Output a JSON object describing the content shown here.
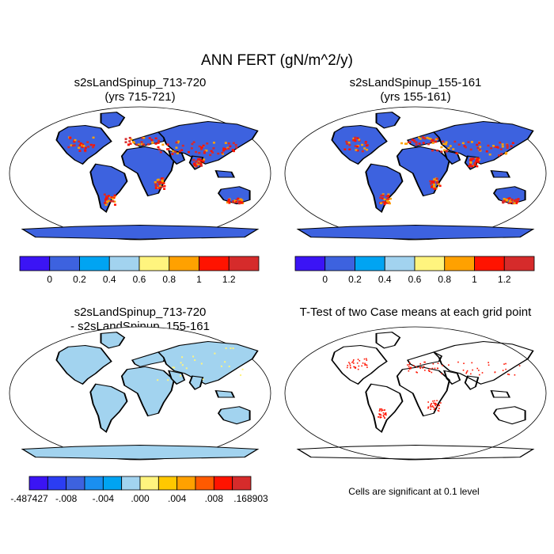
{
  "figure": {
    "title": "ANN FERT (gN/m^2/y)",
    "footnote": "Cells are significant at 0.1 level"
  },
  "chart_data": [
    {
      "type": "heatmap",
      "title": "s2sLandSpinup_713-720",
      "subtitle": "(yrs 715-721)",
      "projection": "Robinson",
      "colorbar": {
        "colors": [
          "#3b14f5",
          "#3d62df",
          "#00a4f2",
          "#a2d3ef",
          "#fff47e",
          "#ffa100",
          "#ff1300",
          "#d62b2b"
        ],
        "tick_labels": [
          "0",
          "0.2",
          "0.4",
          "0.6",
          "0.8",
          "1",
          "1.2"
        ]
      }
    },
    {
      "type": "heatmap",
      "title": "s2sLandSpinup_155-161",
      "subtitle": "(yrs 155-161)",
      "projection": "Robinson",
      "colorbar": {
        "colors": [
          "#3b14f5",
          "#3d62df",
          "#00a4f2",
          "#a2d3ef",
          "#fff47e",
          "#ffa100",
          "#ff1300",
          "#d62b2b"
        ],
        "tick_labels": [
          "0",
          "0.2",
          "0.4",
          "0.6",
          "0.8",
          "1",
          "1.2"
        ]
      }
    },
    {
      "type": "heatmap",
      "title": "s2sLandSpinup_713-720",
      "subtitle": "- s2sLandSpinup_155-161",
      "projection": "Robinson",
      "colorbar": {
        "colors": [
          "#3b14f5",
          "#2b3df3",
          "#3d62df",
          "#1a8ff0",
          "#00a4f2",
          "#a2d3ef",
          "#fff47e",
          "#ffc800",
          "#ffa100",
          "#ff5a00",
          "#ff1300",
          "#d62b2b"
        ],
        "tick_labels": [
          "-.487427",
          "-.008",
          "-.004",
          ".000",
          ".004",
          ".008",
          ".168903"
        ]
      }
    },
    {
      "type": "heatmap",
      "title": "T-Test of two Case means at each grid point",
      "projection": "Robinson",
      "marker_color": "#ff1300"
    }
  ]
}
